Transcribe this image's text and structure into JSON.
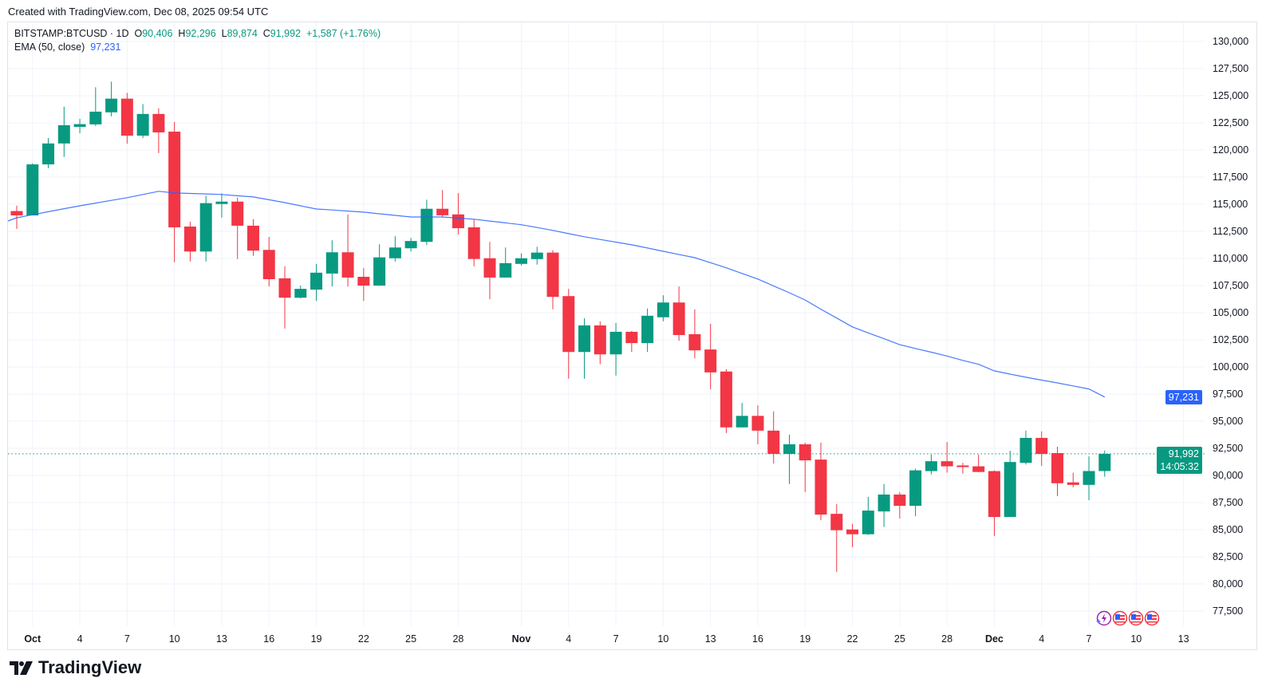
{
  "created": "Created with TradingView.com, Dec 08, 2025 09:54 UTC",
  "legend": {
    "symbol": "BITSTAMP:BTCUSD · 1D",
    "o_label": "O",
    "o_value": "90,406",
    "h_label": "H",
    "h_value": "92,296",
    "l_label": "L",
    "l_value": "89,874",
    "c_label": "C",
    "c_value": "91,992",
    "change": "+1,587 (+1.76%)",
    "ema_label": "EMA (50, close)",
    "ema_value": "97,231"
  },
  "price_tags": {
    "ema": "97,231",
    "close": "91,992",
    "countdown": "14:05:32"
  },
  "logo_text": "TradingView",
  "events": [
    "lightning-event",
    "us-flag-event",
    "us-flag-event",
    "us-flag-event"
  ],
  "colors": {
    "up": "#089981",
    "down": "#F23645",
    "ema": "#2962FF",
    "grid": "#F0F3FA"
  },
  "chart_data": {
    "type": "candlestick",
    "symbol": "BITSTAMP:BTCUSD",
    "interval": "1D",
    "ylim": [
      76000,
      131500
    ],
    "grid": true,
    "y_ticks": [
      77500,
      80000,
      82500,
      85000,
      87500,
      90000,
      92500,
      95000,
      97500,
      100000,
      102500,
      105000,
      107500,
      110000,
      112500,
      115000,
      117500,
      120000,
      122500,
      125000,
      127500,
      130000
    ],
    "x_ticks": [
      {
        "label": "Oct",
        "date": "2025-10-01"
      },
      {
        "label": "4",
        "date": "2025-10-04"
      },
      {
        "label": "7",
        "date": "2025-10-07"
      },
      {
        "label": "10",
        "date": "2025-10-10"
      },
      {
        "label": "13",
        "date": "2025-10-13"
      },
      {
        "label": "16",
        "date": "2025-10-16"
      },
      {
        "label": "19",
        "date": "2025-10-19"
      },
      {
        "label": "22",
        "date": "2025-10-22"
      },
      {
        "label": "25",
        "date": "2025-10-25"
      },
      {
        "label": "28",
        "date": "2025-10-28"
      },
      {
        "label": "Nov",
        "date": "2025-11-01"
      },
      {
        "label": "4",
        "date": "2025-11-04"
      },
      {
        "label": "7",
        "date": "2025-11-07"
      },
      {
        "label": "10",
        "date": "2025-11-10"
      },
      {
        "label": "13",
        "date": "2025-11-13"
      },
      {
        "label": "16",
        "date": "2025-11-16"
      },
      {
        "label": "19",
        "date": "2025-11-19"
      },
      {
        "label": "22",
        "date": "2025-11-22"
      },
      {
        "label": "25",
        "date": "2025-11-25"
      },
      {
        "label": "28",
        "date": "2025-11-28"
      },
      {
        "label": "Dec",
        "date": "2025-12-01"
      },
      {
        "label": "4",
        "date": "2025-12-04"
      },
      {
        "label": "7",
        "date": "2025-12-07"
      },
      {
        "label": "10",
        "date": "2025-12-10"
      },
      {
        "label": "13",
        "date": "2025-12-13"
      }
    ],
    "candles": [
      {
        "d": "2025-09-30",
        "o": 114370,
        "h": 114870,
        "l": 112720,
        "c": 113970
      },
      {
        "d": "2025-10-01",
        "o": 113970,
        "h": 118770,
        "l": 114020,
        "c": 118670
      },
      {
        "d": "2025-10-02",
        "o": 118670,
        "h": 121100,
        "l": 118320,
        "c": 120600
      },
      {
        "d": "2025-10-03",
        "o": 120600,
        "h": 123990,
        "l": 119350,
        "c": 122280
      },
      {
        "d": "2025-10-04",
        "o": 122130,
        "h": 122880,
        "l": 121530,
        "c": 122380
      },
      {
        "d": "2025-10-05",
        "o": 122360,
        "h": 125780,
        "l": 122210,
        "c": 123530
      },
      {
        "d": "2025-10-06",
        "o": 123470,
        "h": 126290,
        "l": 123100,
        "c": 124730
      },
      {
        "d": "2025-10-07",
        "o": 124730,
        "h": 125260,
        "l": 120580,
        "c": 121320
      },
      {
        "d": "2025-10-08",
        "o": 121320,
        "h": 124230,
        "l": 121100,
        "c": 123320
      },
      {
        "d": "2025-10-09",
        "o": 123320,
        "h": 123840,
        "l": 119720,
        "c": 121620
      },
      {
        "d": "2025-10-10",
        "o": 121690,
        "h": 122580,
        "l": 109650,
        "c": 112870
      },
      {
        "d": "2025-10-11",
        "o": 112940,
        "h": 113390,
        "l": 109720,
        "c": 110640
      },
      {
        "d": "2025-10-12",
        "o": 110640,
        "h": 115790,
        "l": 109720,
        "c": 115100
      },
      {
        "d": "2025-10-13",
        "o": 115020,
        "h": 116010,
        "l": 113760,
        "c": 115240
      },
      {
        "d": "2025-10-14",
        "o": 115240,
        "h": 115620,
        "l": 109950,
        "c": 113020
      },
      {
        "d": "2025-10-15",
        "o": 113020,
        "h": 113610,
        "l": 110240,
        "c": 110720
      },
      {
        "d": "2025-10-16",
        "o": 110790,
        "h": 111980,
        "l": 107420,
        "c": 108090
      },
      {
        "d": "2025-10-17",
        "o": 108170,
        "h": 109280,
        "l": 103540,
        "c": 106380
      },
      {
        "d": "2025-10-18",
        "o": 106380,
        "h": 107500,
        "l": 106310,
        "c": 107200
      },
      {
        "d": "2025-10-19",
        "o": 107130,
        "h": 109500,
        "l": 106090,
        "c": 108690
      },
      {
        "d": "2025-10-20",
        "o": 108610,
        "h": 111680,
        "l": 107420,
        "c": 110570
      },
      {
        "d": "2025-10-21",
        "o": 110570,
        "h": 114060,
        "l": 107420,
        "c": 108240
      },
      {
        "d": "2025-10-22",
        "o": 108310,
        "h": 109130,
        "l": 106090,
        "c": 107500
      },
      {
        "d": "2025-10-23",
        "o": 107500,
        "h": 111310,
        "l": 107500,
        "c": 110100
      },
      {
        "d": "2025-10-24",
        "o": 110020,
        "h": 112050,
        "l": 109720,
        "c": 111010
      },
      {
        "d": "2025-10-25",
        "o": 110940,
        "h": 111900,
        "l": 110640,
        "c": 111610
      },
      {
        "d": "2025-10-26",
        "o": 111530,
        "h": 115420,
        "l": 111240,
        "c": 114580
      },
      {
        "d": "2025-10-27",
        "o": 114580,
        "h": 116310,
        "l": 113830,
        "c": 113980
      },
      {
        "d": "2025-10-28",
        "o": 114060,
        "h": 116010,
        "l": 112200,
        "c": 112790
      },
      {
        "d": "2025-10-29",
        "o": 112870,
        "h": 113610,
        "l": 109280,
        "c": 109950
      },
      {
        "d": "2025-10-30",
        "o": 110020,
        "h": 111530,
        "l": 106240,
        "c": 108240
      },
      {
        "d": "2025-10-31",
        "o": 108240,
        "h": 111010,
        "l": 108240,
        "c": 109570
      },
      {
        "d": "2025-11-01",
        "o": 109500,
        "h": 110470,
        "l": 109350,
        "c": 110020
      },
      {
        "d": "2025-11-02",
        "o": 109940,
        "h": 111080,
        "l": 109430,
        "c": 110540
      },
      {
        "d": "2025-11-03",
        "o": 110540,
        "h": 110770,
        "l": 105320,
        "c": 106460
      },
      {
        "d": "2025-11-04",
        "o": 106530,
        "h": 107200,
        "l": 98910,
        "c": 101380
      },
      {
        "d": "2025-11-05",
        "o": 101380,
        "h": 104500,
        "l": 98910,
        "c": 103830
      },
      {
        "d": "2025-11-06",
        "o": 103830,
        "h": 104210,
        "l": 100250,
        "c": 101160
      },
      {
        "d": "2025-11-07",
        "o": 101160,
        "h": 104060,
        "l": 99210,
        "c": 103240
      },
      {
        "d": "2025-11-08",
        "o": 103240,
        "h": 103320,
        "l": 101380,
        "c": 102200
      },
      {
        "d": "2025-11-09",
        "o": 102200,
        "h": 105390,
        "l": 101380,
        "c": 104720
      },
      {
        "d": "2025-11-10",
        "o": 104580,
        "h": 106610,
        "l": 104210,
        "c": 105940
      },
      {
        "d": "2025-11-11",
        "o": 105940,
        "h": 107420,
        "l": 102420,
        "c": 102940
      },
      {
        "d": "2025-11-12",
        "o": 103020,
        "h": 105320,
        "l": 100790,
        "c": 101530
      },
      {
        "d": "2025-11-13",
        "o": 101610,
        "h": 103980,
        "l": 97950,
        "c": 99500
      },
      {
        "d": "2025-11-14",
        "o": 99580,
        "h": 99800,
        "l": 93910,
        "c": 94430
      },
      {
        "d": "2025-11-15",
        "o": 94430,
        "h": 96680,
        "l": 94430,
        "c": 95490
      },
      {
        "d": "2025-11-16",
        "o": 95490,
        "h": 96460,
        "l": 92870,
        "c": 94130
      },
      {
        "d": "2025-11-17",
        "o": 94130,
        "h": 95910,
        "l": 91090,
        "c": 91980
      },
      {
        "d": "2025-11-18",
        "o": 91980,
        "h": 93760,
        "l": 89210,
        "c": 92870
      },
      {
        "d": "2025-11-19",
        "o": 92870,
        "h": 93020,
        "l": 88470,
        "c": 91390
      },
      {
        "d": "2025-11-20",
        "o": 91460,
        "h": 93020,
        "l": 85870,
        "c": 86390
      },
      {
        "d": "2025-11-21",
        "o": 86460,
        "h": 87350,
        "l": 81090,
        "c": 84950
      },
      {
        "d": "2025-11-22",
        "o": 85020,
        "h": 85540,
        "l": 83390,
        "c": 84580
      },
      {
        "d": "2025-11-23",
        "o": 84580,
        "h": 88020,
        "l": 84520,
        "c": 86760
      },
      {
        "d": "2025-11-24",
        "o": 86680,
        "h": 89210,
        "l": 85250,
        "c": 88240
      },
      {
        "d": "2025-11-25",
        "o": 88240,
        "h": 88470,
        "l": 86020,
        "c": 87200
      },
      {
        "d": "2025-11-26",
        "o": 87200,
        "h": 90620,
        "l": 86240,
        "c": 90470
      },
      {
        "d": "2025-11-27",
        "o": 90400,
        "h": 91910,
        "l": 90100,
        "c": 91310
      },
      {
        "d": "2025-11-28",
        "o": 91310,
        "h": 93090,
        "l": 90250,
        "c": 90840
      },
      {
        "d": "2025-11-29",
        "o": 90920,
        "h": 91160,
        "l": 90170,
        "c": 90770
      },
      {
        "d": "2025-11-30",
        "o": 90840,
        "h": 91910,
        "l": 90320,
        "c": 90320
      },
      {
        "d": "2025-12-01",
        "o": 90400,
        "h": 90470,
        "l": 84420,
        "c": 86170
      },
      {
        "d": "2025-12-02",
        "o": 86170,
        "h": 92280,
        "l": 86170,
        "c": 91240
      },
      {
        "d": "2025-12-03",
        "o": 91160,
        "h": 94130,
        "l": 91010,
        "c": 93460
      },
      {
        "d": "2025-12-04",
        "o": 93460,
        "h": 94060,
        "l": 90870,
        "c": 91980
      },
      {
        "d": "2025-12-05",
        "o": 92060,
        "h": 92650,
        "l": 88100,
        "c": 89280
      },
      {
        "d": "2025-12-06",
        "o": 89360,
        "h": 90250,
        "l": 88910,
        "c": 89130
      },
      {
        "d": "2025-12-07",
        "o": 89130,
        "h": 91760,
        "l": 87720,
        "c": 90406
      },
      {
        "d": "2025-12-08",
        "o": 90406,
        "h": 92296,
        "l": 89874,
        "c": 91992
      }
    ],
    "ema": {
      "name": "EMA (50, close)",
      "values": [
        113750,
        114030,
        114310,
        114590,
        114850,
        115100,
        115350,
        115600,
        115900,
        116190,
        116040,
        115990,
        115950,
        115900,
        115780,
        115670,
        115410,
        115150,
        114850,
        114560,
        114470,
        114370,
        114270,
        114120,
        113970,
        113820,
        113820,
        113820,
        113720,
        113620,
        113450,
        113280,
        113110,
        112850,
        112590,
        112290,
        112000,
        111750,
        111510,
        111260,
        110960,
        110660,
        110360,
        110070,
        109610,
        109140,
        108620,
        108100,
        107470,
        106840,
        106170,
        105320,
        104510,
        103690,
        103140,
        102600,
        102050,
        101700,
        101360,
        101010,
        100600,
        100240,
        99640,
        99340,
        99050,
        98790,
        98530,
        98250,
        97970,
        97231
      ]
    }
  }
}
